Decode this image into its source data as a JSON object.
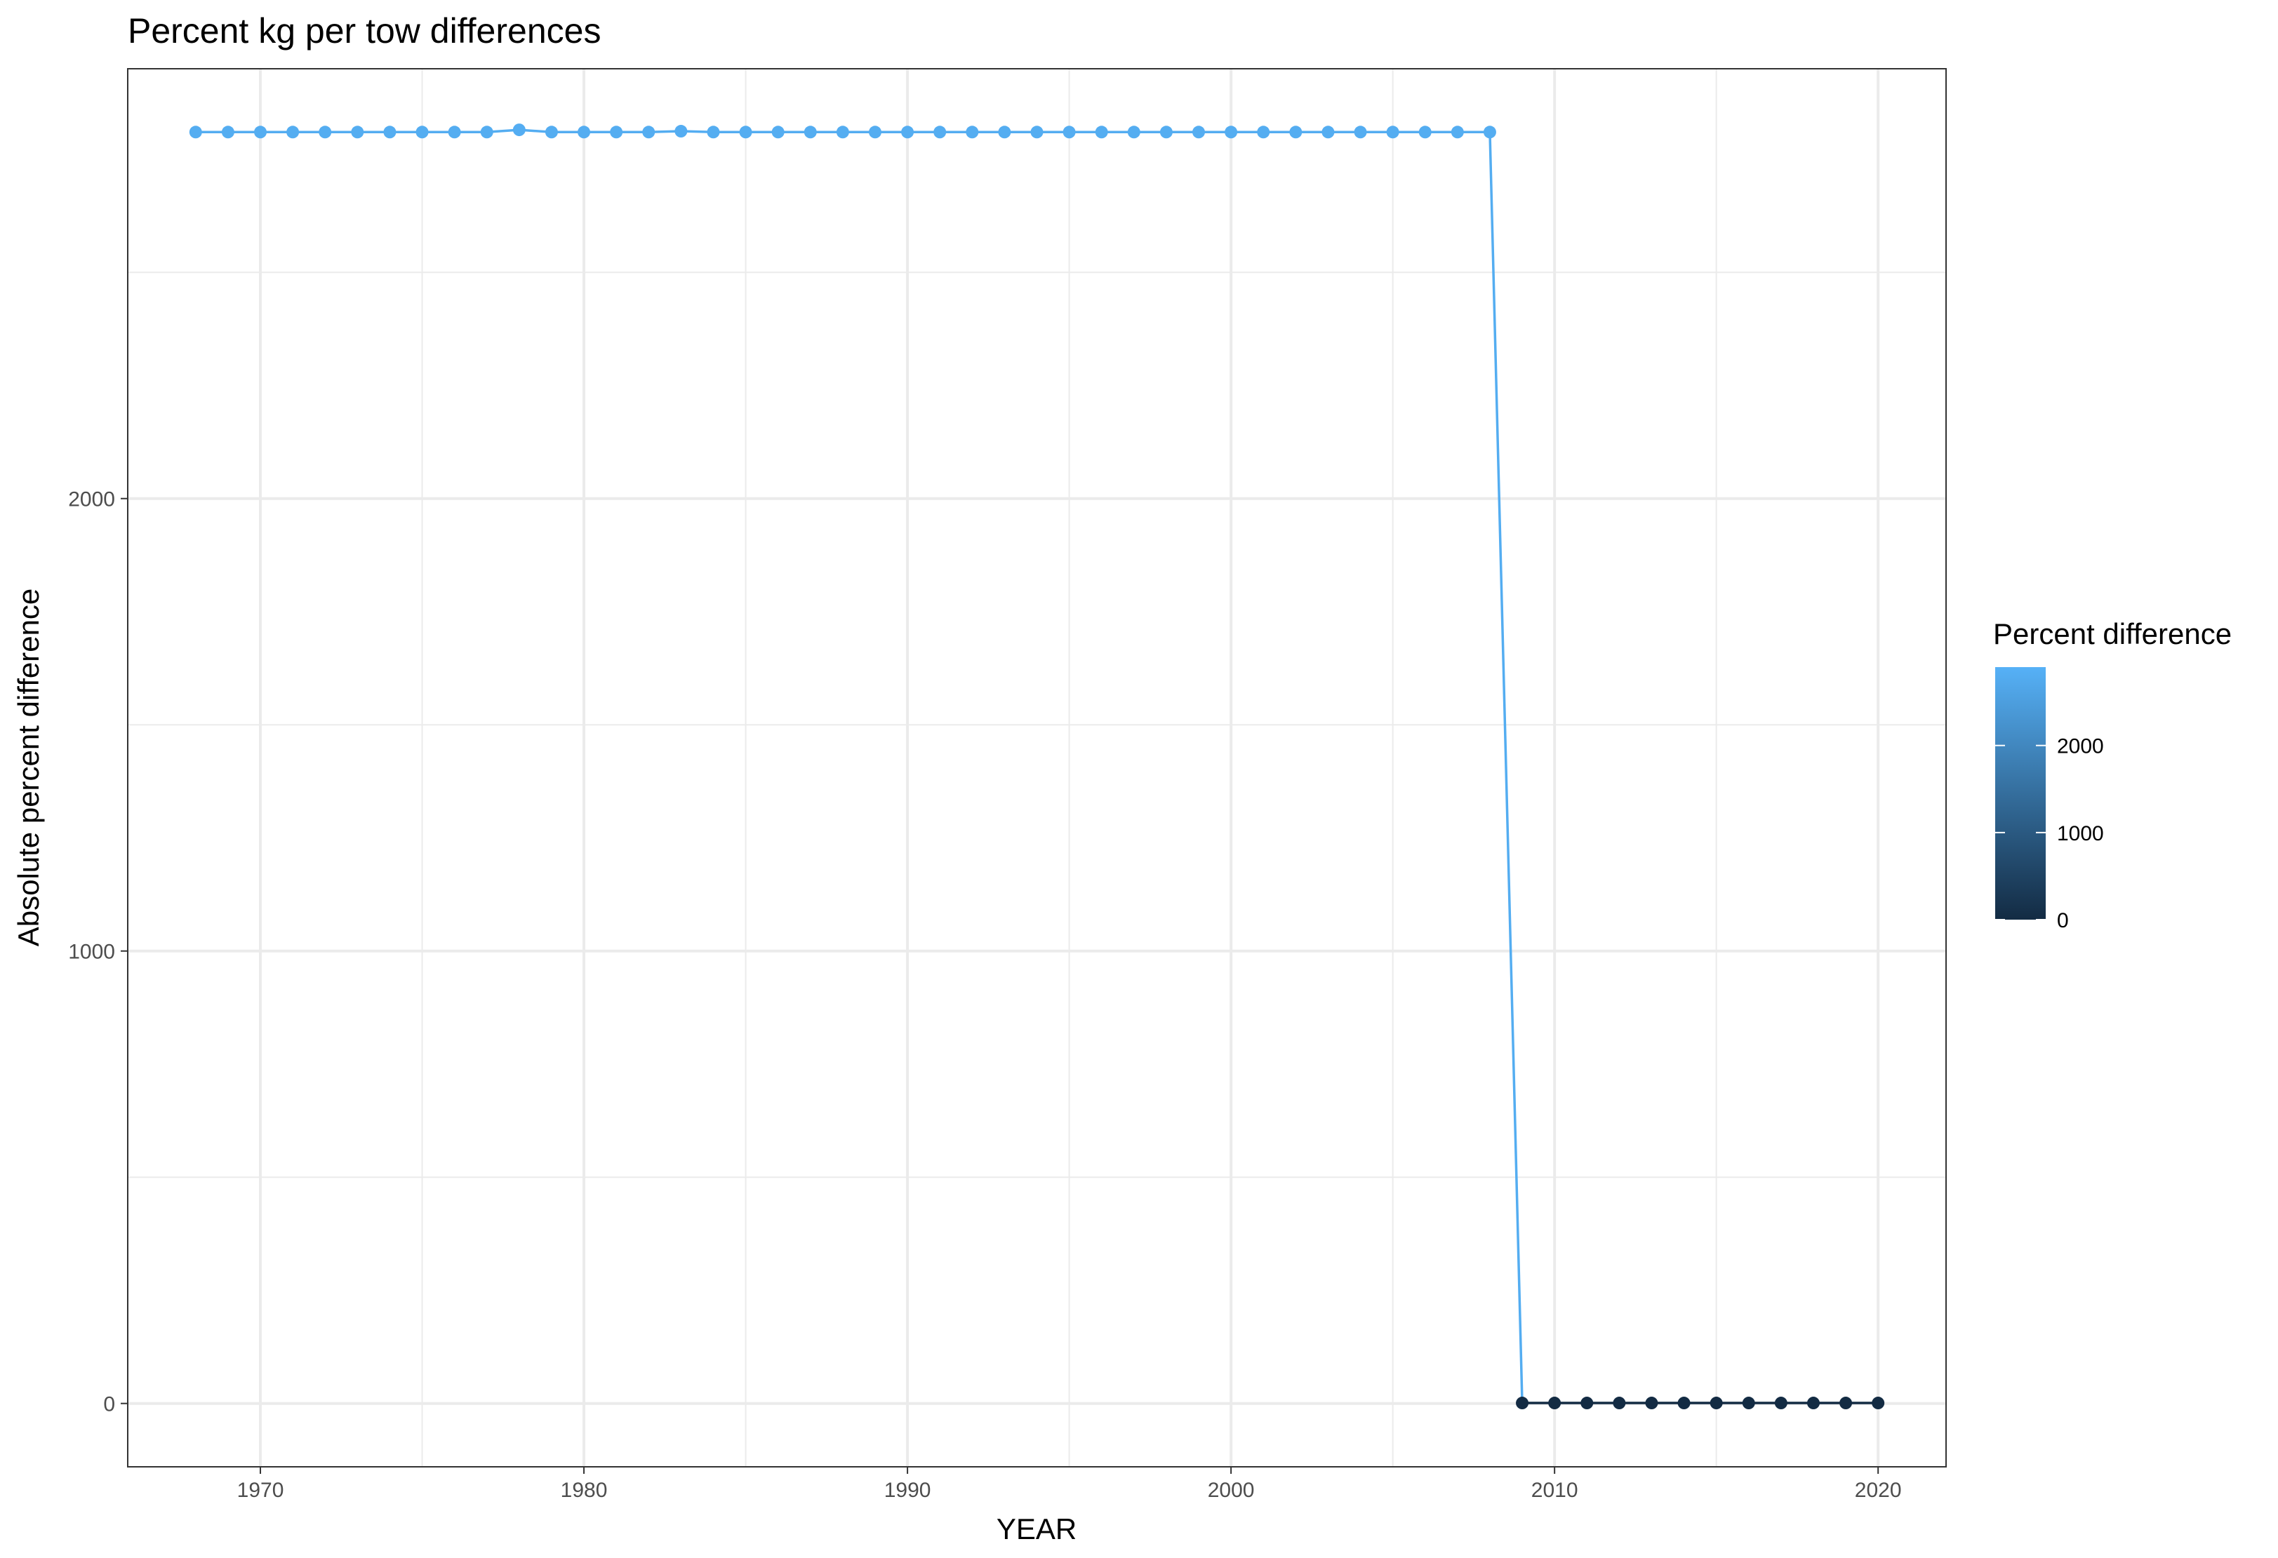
{
  "chart_data": {
    "type": "line",
    "title": "Percent kg per tow differences",
    "xlabel": "YEAR",
    "ylabel": "Absolute percent difference",
    "xlim": [
      1965.9,
      2022.1
    ],
    "ylim": [
      -140,
      2950
    ],
    "x_ticks": [
      1970,
      1980,
      1990,
      2000,
      2010,
      2020
    ],
    "x_tick_labels": [
      "1970",
      "1980",
      "1990",
      "2000",
      "2010",
      "2020"
    ],
    "y_ticks": [
      0,
      1000,
      2000
    ],
    "y_tick_labels": [
      "0",
      "1000",
      "2000"
    ],
    "grid": true,
    "legend": {
      "title": "Percent difference",
      "placement": "right",
      "type": "colorbar",
      "range": [
        0,
        2900
      ],
      "breaks": [
        0,
        1000,
        2000
      ],
      "break_labels": [
        "0",
        "1000",
        "2000"
      ],
      "low_color": "#132b43",
      "high_color": "#56b1f7"
    },
    "series": [
      {
        "x": [
          1968,
          1969,
          1970,
          1971,
          1972,
          1973,
          1974,
          1975,
          1976,
          1977,
          1978,
          1979,
          1980,
          1981,
          1982,
          1983,
          1984,
          1985,
          1986,
          1987,
          1988,
          1989,
          1990,
          1991,
          1992,
          1993,
          1994,
          1995,
          1996,
          1997,
          1998,
          1999,
          2000,
          2001,
          2002,
          2003,
          2004,
          2005,
          2006,
          2007,
          2008,
          2009,
          2010,
          2011,
          2012,
          2013,
          2014,
          2015,
          2016,
          2017,
          2018,
          2019,
          2020
        ],
        "values": [
          2810,
          2810,
          2810,
          2810,
          2810,
          2810,
          2810,
          2810,
          2810,
          2810,
          2815,
          2810,
          2810,
          2810,
          2810,
          2812,
          2810,
          2810,
          2810,
          2810,
          2810,
          2810,
          2810,
          2810,
          2810,
          2810,
          2810,
          2810,
          2810,
          2810,
          2810,
          2810,
          2810,
          2810,
          2810,
          2810,
          2810,
          2810,
          2810,
          2810,
          2810,
          1,
          1,
          1,
          1,
          1,
          1,
          1,
          1,
          1,
          1,
          1,
          1
        ]
      }
    ]
  }
}
